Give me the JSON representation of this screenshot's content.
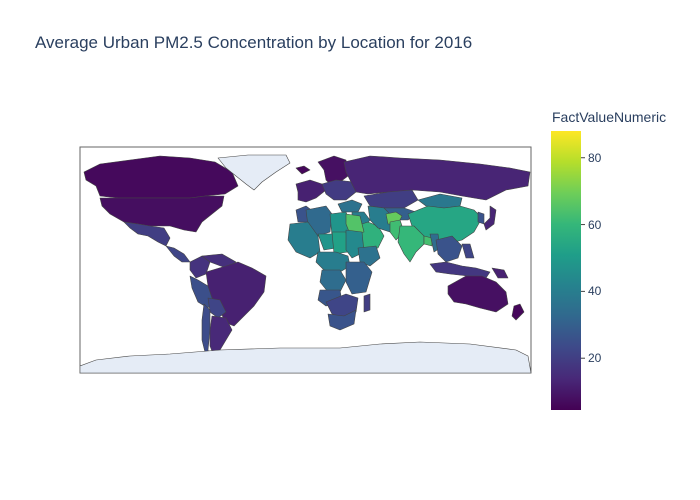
{
  "title": "Average Urban PM2.5 Concentration by Location for 2016",
  "colorbar": {
    "title": "FactValueNumeric",
    "ticks": [
      {
        "value": 20,
        "label": "20"
      },
      {
        "value": 40,
        "label": "40"
      },
      {
        "value": 60,
        "label": "60"
      },
      {
        "value": 80,
        "label": "80"
      }
    ],
    "min": 4.5,
    "max": 88,
    "colorscale": [
      "#440154",
      "#482878",
      "#3e4989",
      "#31688e",
      "#26828e",
      "#1f9e89",
      "#35b779",
      "#6ece58",
      "#b5de2b",
      "#fde725"
    ]
  },
  "map": {
    "projection": "equirectangular",
    "land_color": "#e5ecf6",
    "border_color": "#444444",
    "frame_color": "#666666"
  },
  "chart_data": {
    "type": "choropleth",
    "title": "Average Urban PM2.5 Concentration by Location for 2016",
    "color_variable": "FactValueNumeric",
    "range": [
      4.5,
      88
    ],
    "regions": [
      {
        "name": "Canada",
        "value": 6.5
      },
      {
        "name": "United States",
        "value": 7.5
      },
      {
        "name": "Mexico",
        "value": 20
      },
      {
        "name": "Central America",
        "value": 22
      },
      {
        "name": "Colombia",
        "value": 17
      },
      {
        "name": "Venezuela",
        "value": 16
      },
      {
        "name": "Peru",
        "value": 25
      },
      {
        "name": "Brazil",
        "value": 12
      },
      {
        "name": "Bolivia",
        "value": 22
      },
      {
        "name": "Chile",
        "value": 24
      },
      {
        "name": "Argentina",
        "value": 14
      },
      {
        "name": "Greenland",
        "value": null
      },
      {
        "name": "Antarctica",
        "value": null
      },
      {
        "name": "Iceland",
        "value": 6
      },
      {
        "name": "Northern Europe",
        "value": 8
      },
      {
        "name": "Western Europe",
        "value": 12
      },
      {
        "name": "Eastern Europe",
        "value": 19
      },
      {
        "name": "Russia",
        "value": 13
      },
      {
        "name": "Kazakhstan",
        "value": 20
      },
      {
        "name": "Central Asia",
        "value": 30
      },
      {
        "name": "Mongolia",
        "value": 38
      },
      {
        "name": "China",
        "value": 54
      },
      {
        "name": "Korea",
        "value": 26
      },
      {
        "name": "Japan",
        "value": 13
      },
      {
        "name": "Turkey",
        "value": 36
      },
      {
        "name": "Middle East",
        "value": 40
      },
      {
        "name": "Saudi Arabia",
        "value": 58
      },
      {
        "name": "Iran",
        "value": 40
      },
      {
        "name": "Afghanistan",
        "value": 68
      },
      {
        "name": "Pakistan",
        "value": 62
      },
      {
        "name": "India",
        "value": 60
      },
      {
        "name": "Bangladesh",
        "value": 63
      },
      {
        "name": "Myanmar",
        "value": 34
      },
      {
        "name": "Southeast Asia",
        "value": 26
      },
      {
        "name": "Indonesia",
        "value": 18
      },
      {
        "name": "Philippines",
        "value": 22
      },
      {
        "name": "Papua New Guinea",
        "value": 12
      },
      {
        "name": "Australia",
        "value": 8
      },
      {
        "name": "New Zealand",
        "value": 6
      },
      {
        "name": "Morocco",
        "value": 26
      },
      {
        "name": "Algeria",
        "value": 33
      },
      {
        "name": "Libya",
        "value": 48
      },
      {
        "name": "Egypt",
        "value": 65
      },
      {
        "name": "West Africa",
        "value": 40
      },
      {
        "name": "Niger",
        "value": 48
      },
      {
        "name": "Chad",
        "value": 52
      },
      {
        "name": "Sudan",
        "value": 44
      },
      {
        "name": "Ethiopia",
        "value": 36
      },
      {
        "name": "Central Africa",
        "value": 40
      },
      {
        "name": "Congo",
        "value": 34
      },
      {
        "name": "East Africa",
        "value": 30
      },
      {
        "name": "Angola",
        "value": 27
      },
      {
        "name": "Southern Africa",
        "value": 22
      },
      {
        "name": "South Africa",
        "value": 26
      },
      {
        "name": "Madagascar",
        "value": 20
      }
    ]
  }
}
